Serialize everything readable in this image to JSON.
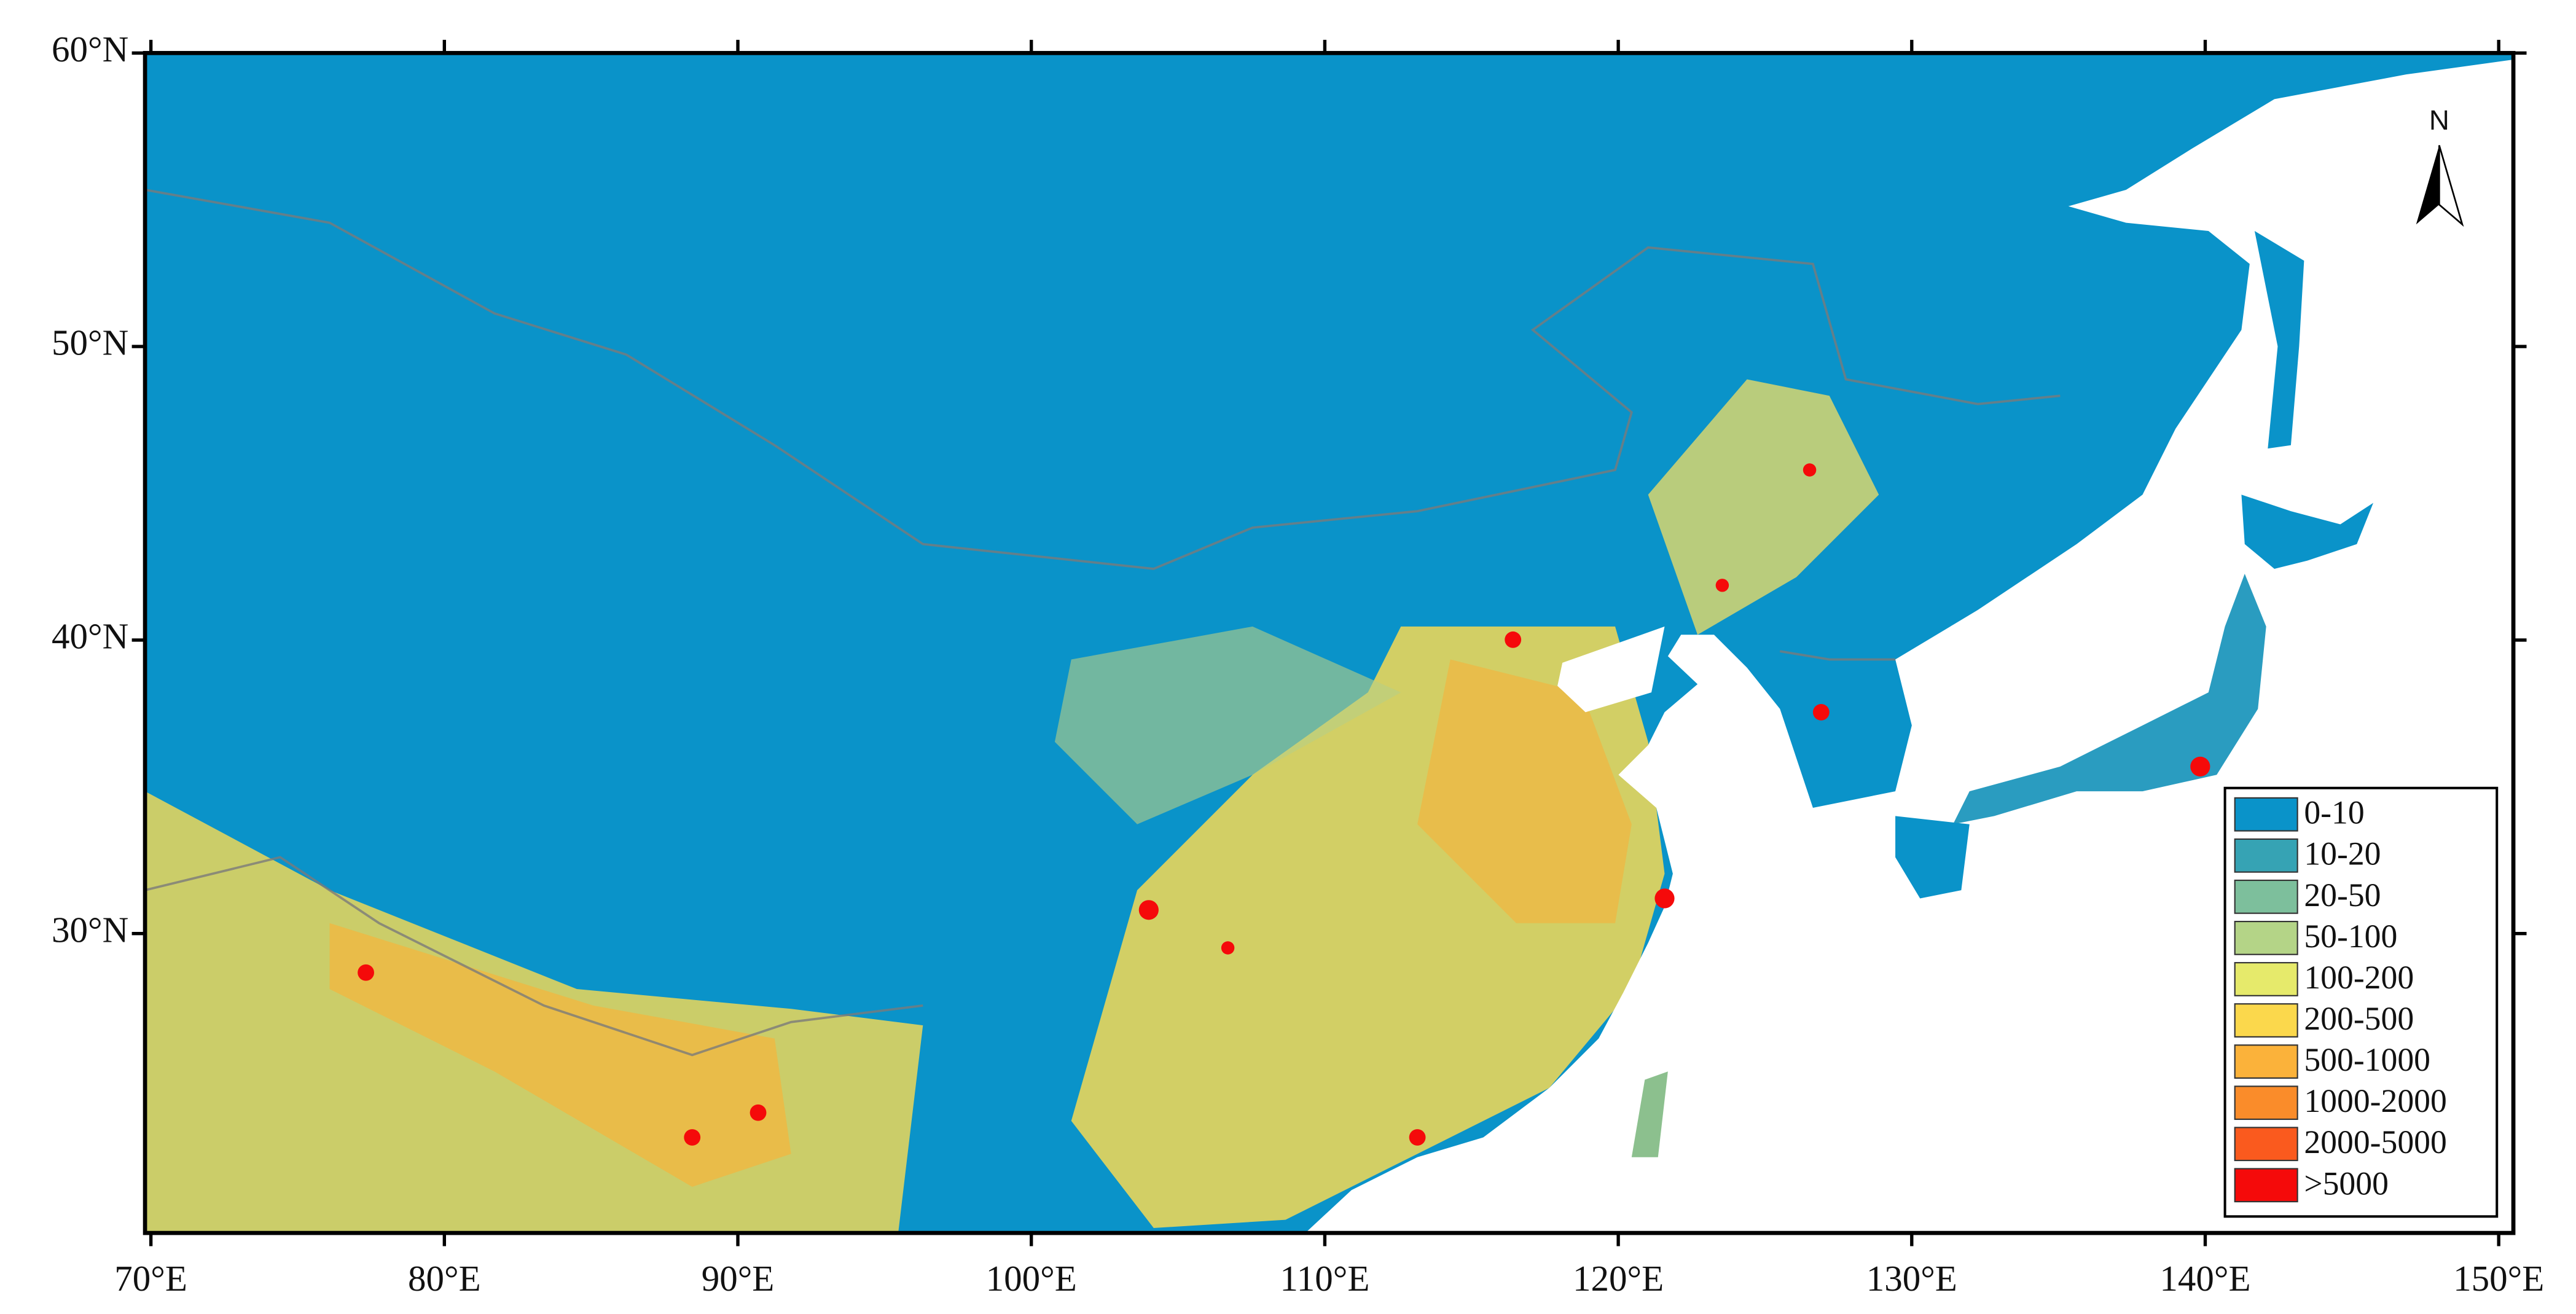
{
  "map": {
    "xlim": [
      69.8,
      150.5
    ],
    "ylim": [
      19.8,
      60
    ],
    "xticks": [
      {
        "value": 70,
        "label": "70°E"
      },
      {
        "value": 80,
        "label": "80°E"
      },
      {
        "value": 90,
        "label": "90°E"
      },
      {
        "value": 100,
        "label": "100°E"
      },
      {
        "value": 110,
        "label": "110°E"
      },
      {
        "value": 120,
        "label": "120°E"
      },
      {
        "value": 130,
        "label": "130°E"
      },
      {
        "value": 140,
        "label": "140°E"
      },
      {
        "value": 150,
        "label": "150°E"
      }
    ],
    "yticks": [
      {
        "value": 30,
        "label": "30°N"
      },
      {
        "value": 40,
        "label": "40°N"
      },
      {
        "value": 50,
        "label": "50°N"
      },
      {
        "value": 60,
        "label": "60°N"
      }
    ],
    "north_label": "N",
    "legend": {
      "items": [
        {
          "label": "0-10",
          "color": "#0a93c9"
        },
        {
          "label": "10-20",
          "color": "#36a3b4"
        },
        {
          "label": "20-50",
          "color": "#7dbf9c"
        },
        {
          "label": "50-100",
          "color": "#b4d487"
        },
        {
          "label": "100-200",
          "color": "#e6ea6b"
        },
        {
          "label": "200-500",
          "color": "#fbd84c"
        },
        {
          "label": "500-1000",
          "color": "#fbb23a"
        },
        {
          "label": "1000-2000",
          "color": "#fa8c2a"
        },
        {
          "label": "2000-5000",
          "color": "#fa5a1e"
        },
        {
          "label": ">5000",
          "color": "#f50a0a"
        }
      ]
    }
  }
}
